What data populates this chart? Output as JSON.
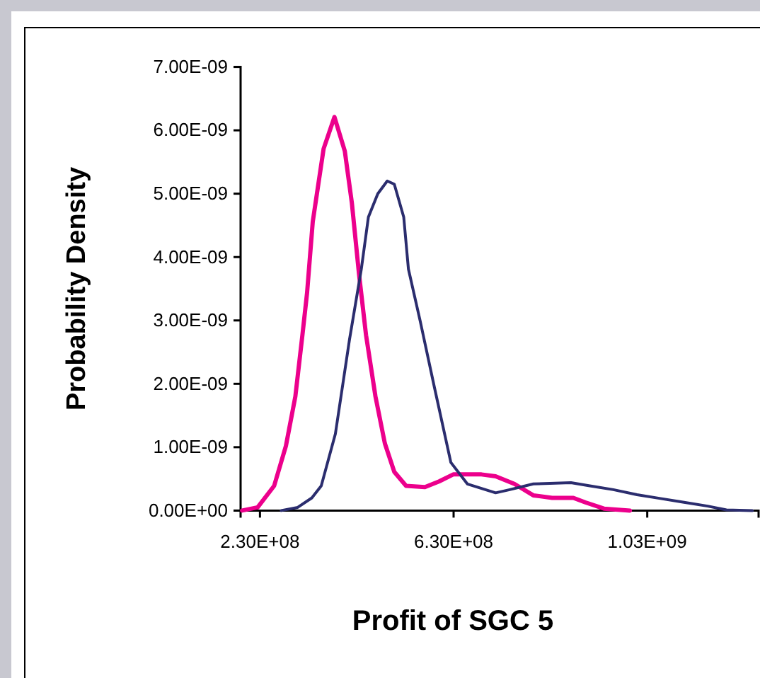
{
  "chart_data": {
    "type": "line",
    "xlabel": "Profit of SGC 5",
    "ylabel": "Probability Density",
    "xlim": [
      190000000.0,
      1260000000.0
    ],
    "xticks": [
      {
        "value": 230000000.0,
        "label": "2.30E+08"
      },
      {
        "value": 630000000.0,
        "label": "6.30E+08"
      },
      {
        "value": 1030000000.0,
        "label": "1.03E+09"
      }
    ],
    "ylim": [
      0,
      7e-09
    ],
    "yticks": [
      {
        "value": 0,
        "label": "0.00E+00"
      },
      {
        "value": 1e-09,
        "label": "1.00E-09"
      },
      {
        "value": 2e-09,
        "label": "2.00E-09"
      },
      {
        "value": 3e-09,
        "label": "3.00E-09"
      },
      {
        "value": 4e-09,
        "label": "4.00E-09"
      },
      {
        "value": 5e-09,
        "label": "5.00E-09"
      },
      {
        "value": 6e-09,
        "label": "6.00E-09"
      },
      {
        "value": 7e-09,
        "label": "7.00E-09"
      }
    ],
    "grid": false,
    "marker": "none",
    "line_style": "solid",
    "series": [
      {
        "color": "#ec008c",
        "x": [
          193100000.0,
          225200000.0,
          259300000.0,
          283600000.0,
          303100000.0,
          317700000.0,
          327400000.0,
          339100000.0,
          361500000.0,
          383900000.0,
          405300000.0,
          419900000.0,
          434500000.0,
          449100000.0,
          468600000.0,
          488000000.0,
          507500000.0,
          531800000.0,
          570800000.0,
          600000000.0,
          629200000.0,
          687600000.0,
          716800000.0,
          755600000.0,
          794600000.0,
          833600000.0,
          877400000.0,
          901700000.0,
          940600000.0,
          994200000.0
        ],
        "values": [
          0,
          5e-11,
          3.9e-10,
          1.02e-09,
          1.8e-09,
          2.77e-09,
          3.44e-09,
          4.56e-09,
          5.71e-09,
          6.21e-09,
          5.67e-09,
          4.85e-09,
          3.74e-09,
          2.77e-09,
          1.8e-09,
          1.06e-09,
          6.1e-10,
          3.9e-10,
          3.7e-10,
          4.6e-10,
          5.7e-10,
          5.7e-10,
          5.4e-10,
          4.2e-10,
          2.4e-10,
          2e-10,
          2e-10,
          1.3e-10,
          3e-11,
          0
        ]
      },
      {
        "color": "#2b2d6e",
        "x": [
          273900000.0,
          308000000.0,
          337200000.0,
          356600000.0,
          385800000.0,
          415000000.0,
          439400000.0,
          454000000.0,
          473400000.0,
          492900000.0,
          507500000.0,
          527000000.0,
          536700000.0,
          561000000.0,
          590200000.0,
          624300000.0,
          658400000.0,
          716800000.0,
          746000000.0,
          794600000.0,
          872400000.0,
          911400000.0,
          960000000.0,
          1008800000.0,
          1057400000.0,
          1106000000.0,
          1154800000.0,
          1193600000.0,
          1247200000.0
        ],
        "values": [
          0,
          5e-11,
          2e-10,
          3.9e-10,
          1.21e-09,
          2.7e-09,
          3.81e-09,
          4.63e-09,
          5e-09,
          5.2e-09,
          5.15e-09,
          4.63e-09,
          3.81e-09,
          2.99e-09,
          1.95e-09,
          7.6e-10,
          4.2e-10,
          2.8e-10,
          3.3e-10,
          4.2e-10,
          4.4e-10,
          3.9e-10,
          3.3e-10,
          2.5e-10,
          1.9e-10,
          1.3e-10,
          7e-11,
          1e-11,
          0
        ]
      }
    ]
  }
}
